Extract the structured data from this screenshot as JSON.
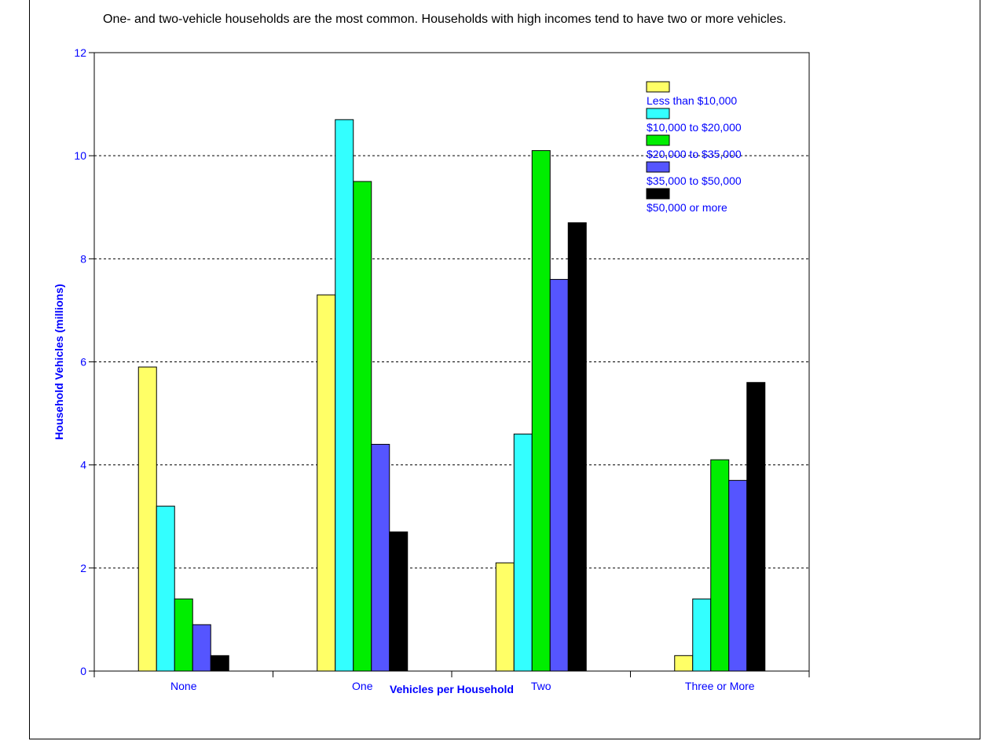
{
  "caption": "One- and two-vehicle households are the most common.  Households with high incomes tend to have two or more vehicles.",
  "chart_data": {
    "type": "bar",
    "title": "One- and two-vehicle households are the most common.  Households with high incomes tend to have two or more vehicles.",
    "xlabel": "Vehicles per Household",
    "ylabel": "Household Vehicles (millions)",
    "categories": [
      "None",
      "One",
      "Two",
      "Three or More"
    ],
    "ylim": [
      0,
      12
    ],
    "yticks": [
      0,
      2,
      4,
      6,
      8,
      10,
      12
    ],
    "grid": "horizontal-dashed",
    "legend_position": "top-right",
    "series": [
      {
        "name": "Less than $10,000",
        "color": "#ffff66",
        "values": [
          5.9,
          7.3,
          2.1,
          0.3
        ]
      },
      {
        "name": "$10,000 to $20,000",
        "color": "#33ffff",
        "values": [
          3.2,
          10.7,
          4.6,
          1.4
        ]
      },
      {
        "name": "$20,000 to $35,000",
        "color": "#00ee00",
        "values": [
          1.4,
          9.5,
          10.1,
          4.1
        ]
      },
      {
        "name": "$35,000 to $50,000",
        "color": "#5555ff",
        "values": [
          0.9,
          4.4,
          7.6,
          3.7
        ]
      },
      {
        "name": "$50,000 or more",
        "color": "#000000",
        "values": [
          0.3,
          2.7,
          8.7,
          5.6
        ]
      }
    ]
  }
}
